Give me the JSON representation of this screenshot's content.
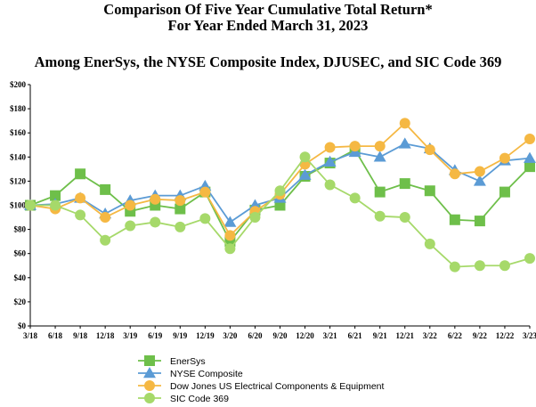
{
  "title": {
    "line1": "Comparison Of Five Year Cumulative Total Return*",
    "line2": "For Year Ended March 31, 2023",
    "line3": "Among EnerSys, the NYSE Composite Index, DJUSEC, and SIC Code 369"
  },
  "colors": {
    "enersys": "#6ebf4a",
    "nyse": "#5b9bd5",
    "dowjones": "#f5b843",
    "sic": "#a6d96a"
  },
  "chart_data": {
    "type": "line",
    "title": "Among EnerSys, the NYSE Composite Index, DJUSEC, and SIC Code 369",
    "xlabel": "",
    "ylabel": "",
    "ylim": [
      0,
      200
    ],
    "y_ticks": [
      "$0",
      "$20",
      "$40",
      "$60",
      "$80",
      "$100",
      "$120",
      "$140",
      "$160",
      "$180",
      "$200"
    ],
    "y_tick_values": [
      0,
      20,
      40,
      60,
      80,
      100,
      120,
      140,
      160,
      180,
      200
    ],
    "categories": [
      "3/18",
      "6/18",
      "9/18",
      "12/18",
      "3/19",
      "6/19",
      "9/19",
      "12/19",
      "3/20",
      "6/20",
      "9/20",
      "12/20",
      "3/21",
      "6/21",
      "9/21",
      "12/21",
      "3/22",
      "6/22",
      "9/22",
      "12/22",
      "3/23"
    ],
    "legend_position": "bottom",
    "series": [
      {
        "name": "EnerSys",
        "marker": "square",
        "color": "#6ebf4a",
        "values": [
          100,
          108,
          126,
          113,
          95,
          100,
          97,
          111,
          70,
          96,
          100,
          124,
          135,
          146,
          111,
          118,
          112,
          88,
          87,
          111,
          132
        ]
      },
      {
        "name": "NYSE Composite",
        "marker": "triangle",
        "color": "#5b9bd5",
        "values": [
          100,
          101,
          106,
          93,
          104,
          108,
          108,
          116,
          86,
          100,
          106,
          125,
          136,
          144,
          140,
          151,
          147,
          129,
          120,
          137,
          139
        ]
      },
      {
        "name": "Dow Jones US Electrical Components & Equipment",
        "marker": "circle",
        "color": "#f5b843",
        "values": [
          100,
          97,
          106,
          90,
          100,
          105,
          104,
          111,
          75,
          95,
          109,
          134,
          148,
          149,
          149,
          168,
          146,
          126,
          128,
          139,
          155
        ]
      },
      {
        "name": "SIC Code 369",
        "marker": "circle",
        "color": "#a6d96a",
        "values": [
          100,
          100,
          92,
          71,
          83,
          86,
          82,
          89,
          64,
          90,
          112,
          140,
          117,
          106,
          91,
          90,
          68,
          49,
          50,
          50,
          56
        ]
      }
    ]
  }
}
